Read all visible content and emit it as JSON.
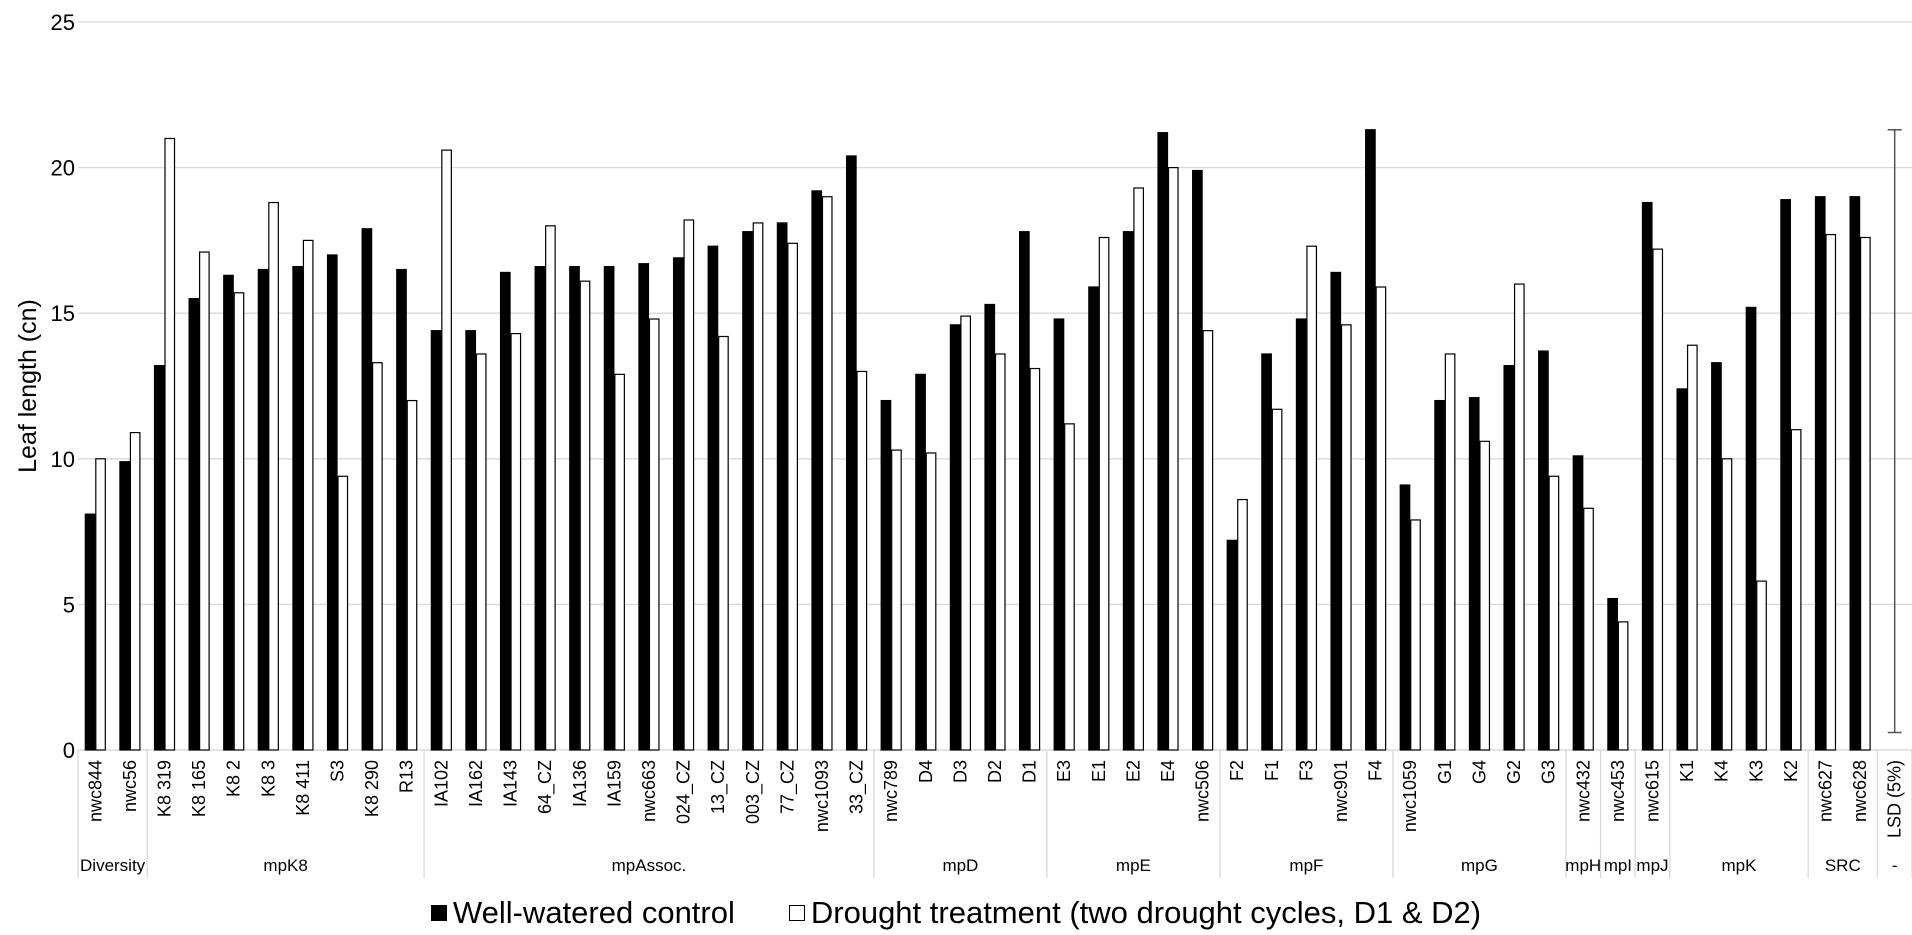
{
  "chart_data": {
    "type": "bar",
    "title": "",
    "xlabel": "",
    "ylabel": "Leaf length (cn)",
    "ylim": [
      0,
      25
    ],
    "yticks": [
      0,
      5,
      10,
      15,
      20,
      25
    ],
    "grid": true,
    "legend_position": "bottom",
    "categories": [
      "nwc844",
      "nwc56",
      "K8 319",
      "K8 165",
      "K8 2",
      "K8 3",
      "K8 411",
      "S3",
      "K8 290",
      "R13",
      "IA102",
      "IA162",
      "IA143",
      "64_CZ",
      "IA136",
      "IA159",
      "nwc663",
      "024_CZ",
      "13_CZ",
      "003_CZ",
      "77_CZ",
      "nwc1093",
      "33_CZ",
      "nwc789",
      "D4",
      "D3",
      "D2",
      "D1",
      "E3",
      "E1",
      "E2",
      "E4",
      "nwc506",
      "F2",
      "F1",
      "F3",
      "nwc901",
      "F4",
      "nwc1059",
      "G1",
      "G4",
      "G2",
      "G3",
      "nwc432",
      "nwc453",
      "nwc615",
      "K1",
      "K4",
      "K3",
      "K2",
      "nwc627",
      "nwc628",
      "LSD (5%)"
    ],
    "groups": [
      {
        "name": "Diversity",
        "count": 2
      },
      {
        "name": "mpK8",
        "count": 8
      },
      {
        "name": "mpAssoc.",
        "count": 13
      },
      {
        "name": "mpD",
        "count": 5
      },
      {
        "name": "mpE",
        "count": 5
      },
      {
        "name": "mpF",
        "count": 5
      },
      {
        "name": "mpG",
        "count": 5
      },
      {
        "name": "mpH",
        "count": 1
      },
      {
        "name": "mpI",
        "count": 1
      },
      {
        "name": "mpJ",
        "count": 1
      },
      {
        "name": "mpK",
        "count": 4
      },
      {
        "name": "SRC",
        "count": 2
      },
      {
        "name": "-",
        "count": 1
      }
    ],
    "series": [
      {
        "name": "Well-watered control",
        "color": "#000000",
        "values": [
          8.1,
          9.9,
          13.2,
          15.5,
          16.3,
          16.5,
          16.6,
          17.0,
          17.9,
          16.5,
          14.4,
          14.4,
          16.4,
          16.6,
          16.6,
          16.6,
          16.7,
          16.9,
          17.3,
          17.8,
          18.1,
          19.2,
          20.4,
          12.0,
          12.9,
          14.6,
          15.3,
          17.8,
          14.8,
          15.9,
          17.8,
          21.2,
          19.9,
          7.2,
          13.6,
          14.8,
          16.4,
          21.3,
          9.1,
          12.0,
          12.1,
          13.2,
          13.7,
          10.1,
          5.2,
          18.8,
          12.4,
          13.3,
          15.2,
          18.9,
          19.0,
          19.0,
          null
        ]
      },
      {
        "name": "Drought treatment (two drought cycles, D1 & D2)",
        "color": "#ffffff",
        "values": [
          10.0,
          10.9,
          21.0,
          17.1,
          15.7,
          18.8,
          17.5,
          9.4,
          13.3,
          12.0,
          20.6,
          13.6,
          14.3,
          18.0,
          16.1,
          12.9,
          14.8,
          18.2,
          14.2,
          18.1,
          17.4,
          19.0,
          13.0,
          10.3,
          10.2,
          14.9,
          13.6,
          13.1,
          11.2,
          17.6,
          19.3,
          20.0,
          14.4,
          8.6,
          11.7,
          17.3,
          14.6,
          15.9,
          7.9,
          13.6,
          10.6,
          16.0,
          9.4,
          8.3,
          4.4,
          17.2,
          13.9,
          10.0,
          5.8,
          11.0,
          17.7,
          17.6,
          null
        ]
      }
    ],
    "error_bar": {
      "category": "LSD (5%)",
      "low": 0.6,
      "high": 21.3
    }
  }
}
